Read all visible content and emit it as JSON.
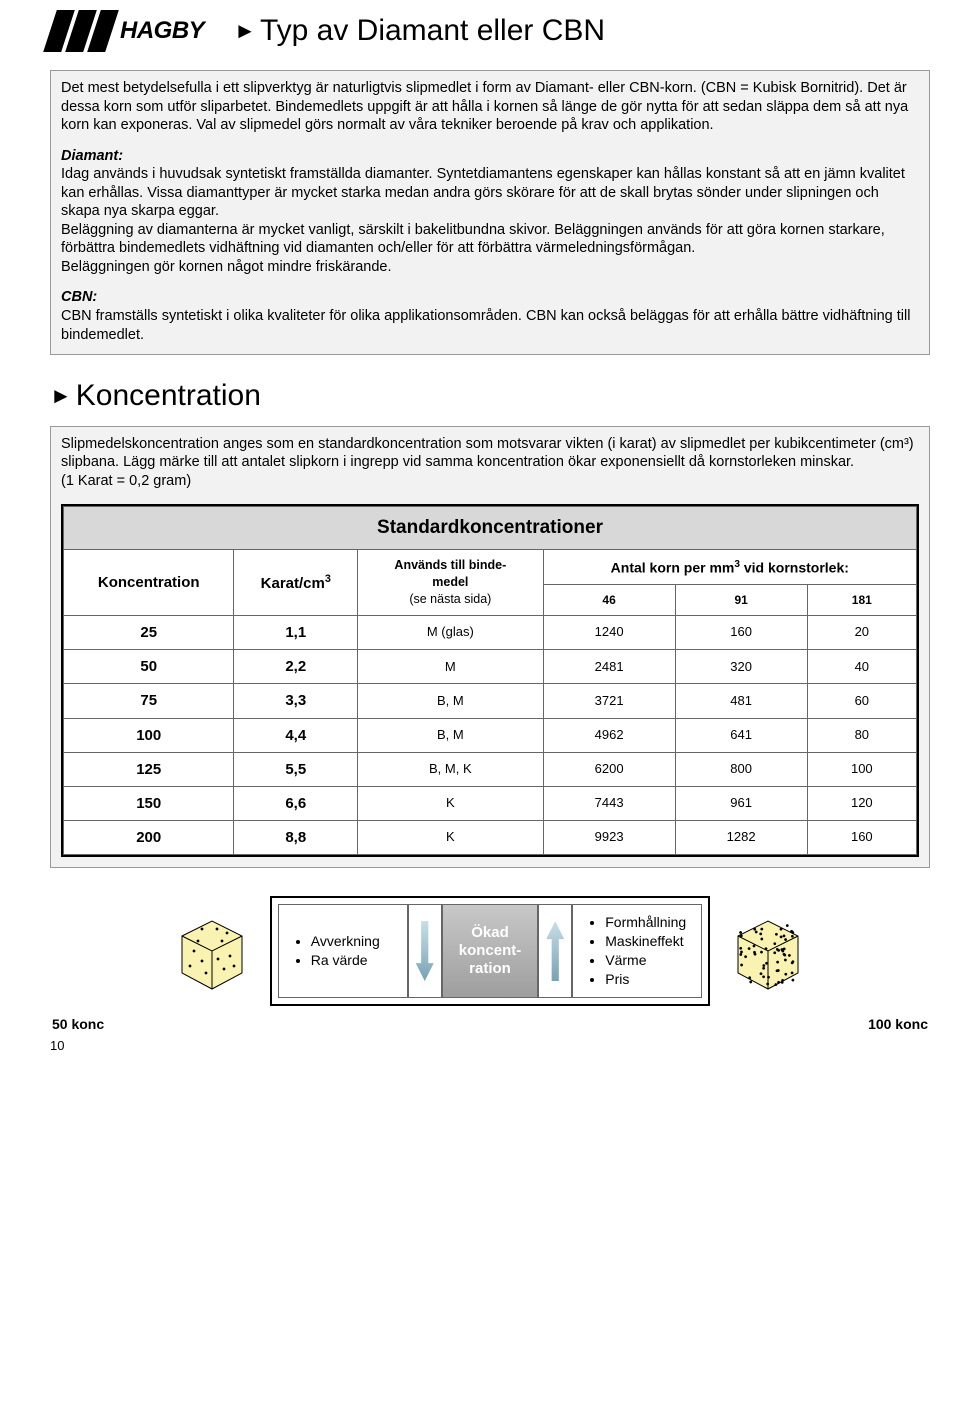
{
  "logo_text": "HAGBY",
  "title": "Typ av Diamant eller CBN",
  "intro_p1": "Det mest betydelsefulla i ett slipverktyg är naturligtvis slipmedlet i form av Diamant- eller CBN-korn. (CBN = Kubisk Bornitrid). Det är dessa korn som utför sliparbetet. Bindemedlets uppgift är att hålla i kornen så länge de gör nytta för att sedan släppa dem så att nya korn kan exponeras. Val av slipmedel görs normalt av våra tekniker beroende på krav och applikation.",
  "diamant_head": "Diamant:",
  "diamant_body": "Idag används i huvudsak syntetiskt framställda diamanter. Syntetdiamantens egenskaper kan hållas konstant så att en jämn kvalitet kan erhållas. Vissa diamanttyper är mycket starka medan andra görs skörare för att de skall brytas sönder under slipningen och skapa nya skarpa eggar.\nBeläggning av diamanterna är mycket vanligt, särskilt i bakelitbundna skivor. Beläggningen används för att göra kornen starkare, förbättra bindemedlets vidhäftning vid diamanten och/eller för att förbättra värmeledningsförmågan.\nBeläggningen gör kornen något mindre friskärande.",
  "cbn_head": "CBN:",
  "cbn_body": "CBN framställs syntetiskt i olika kvaliteter för olika applikationsområden. CBN kan också beläggas för att erhålla bättre vidhäftning till bindemedlet.",
  "section2": "Koncentration",
  "konc_intro": "Slipmedelskoncentration anges som en standardkoncentration som motsvarar vikten (i karat) av slipmedlet per kubikcentimeter (cm³) slipbana. Lägg märke till att antalet slipkorn i ingrepp vid samma koncentration ökar exponensiellt då kornstorleken minskar.\n(1 Karat = 0,2 gram)",
  "table": {
    "title": "Standardkoncentrationer",
    "col_konc": "Koncentration",
    "col_karat": "Karat/cm",
    "col_binde_l1": "Används till binde-",
    "col_binde_l2": "medel",
    "col_binde_l3": "(se nästa sida)",
    "col_antal": "Antal korn per mm",
    "col_antal_tail": " vid kornstorlek:",
    "col_46": "46",
    "col_91": "91",
    "col_181": "181",
    "rows": [
      {
        "k": "25",
        "kc": "1,1",
        "b": "M (glas)",
        "v46": "1240",
        "v91": "160",
        "v181": "20"
      },
      {
        "k": "50",
        "kc": "2,2",
        "b": "M",
        "v46": "2481",
        "v91": "320",
        "v181": "40"
      },
      {
        "k": "75",
        "kc": "3,3",
        "b": "B, M",
        "v46": "3721",
        "v91": "481",
        "v181": "60"
      },
      {
        "k": "100",
        "kc": "4,4",
        "b": "B, M",
        "v46": "4962",
        "v91": "641",
        "v181": "80"
      },
      {
        "k": "125",
        "kc": "5,5",
        "b": "B, M, K",
        "v46": "6200",
        "v91": "800",
        "v181": "100"
      },
      {
        "k": "150",
        "kc": "6,6",
        "b": "K",
        "v46": "7443",
        "v91": "961",
        "v181": "120"
      },
      {
        "k": "200",
        "kc": "8,8",
        "b": "K",
        "v46": "9923",
        "v91": "1282",
        "v181": "160"
      }
    ]
  },
  "info": {
    "left": [
      "Avverkning",
      "Ra värde"
    ],
    "center": "Ökad koncent-ration",
    "right": [
      "Formhållning",
      "Maskineffekt",
      "Värme",
      "Pris"
    ]
  },
  "cube_left_label": "50 konc",
  "cube_right_label": "100 konc",
  "page_number": "10",
  "colors": {
    "box_bg": "#f2f2f2",
    "box_border": "#999999",
    "table_header_bg": "#d8d8d8",
    "cube_fill": "#f9f2b0",
    "cube_stroke": "#000000",
    "arrow_grad_a": "#c7dfe6",
    "arrow_grad_b": "#79a3b4",
    "center_text": "#ffffff"
  }
}
